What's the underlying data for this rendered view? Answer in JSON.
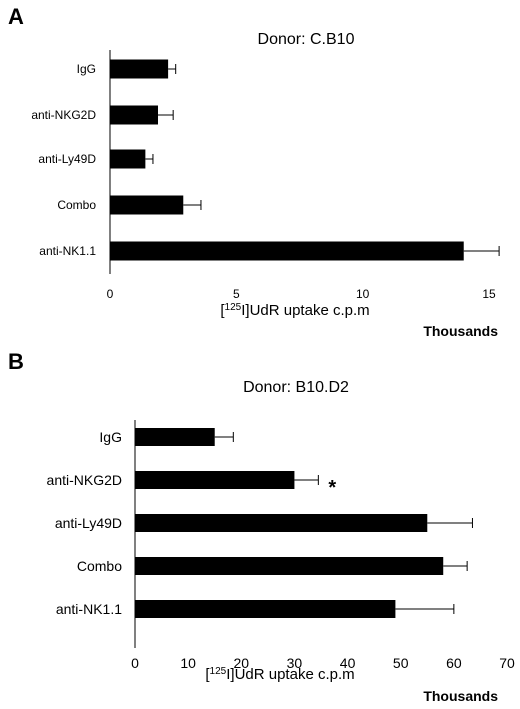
{
  "chart_data": [
    {
      "panel": "A",
      "type": "bar",
      "orientation": "horizontal",
      "title": "Donor: C.B10",
      "categories": [
        "IgG",
        "anti-NKG2D",
        "anti-Ly49D",
        "Combo",
        "anti-NK1.1"
      ],
      "values": [
        2.3,
        1.9,
        1.4,
        2.9,
        14.0
      ],
      "errors": [
        0.3,
        0.6,
        0.3,
        0.7,
        1.4
      ],
      "xlim": [
        0,
        15
      ],
      "xticks": [
        0,
        5,
        10,
        15
      ],
      "xlabel_pre": "[",
      "xlabel_sup": "125",
      "xlabel_post": "I]UdR uptake c.p.m",
      "units": "Thousands",
      "bar_color": "#000000",
      "grid": false
    },
    {
      "panel": "B",
      "type": "bar",
      "orientation": "horizontal",
      "title": "Donor:  B10.D2",
      "categories": [
        "IgG",
        "anti-NKG2D",
        "anti-Ly49D",
        "Combo",
        "anti-NK1.1"
      ],
      "values": [
        15,
        30,
        55,
        58,
        49
      ],
      "errors": [
        3.5,
        4.5,
        8.5,
        4.5,
        11
      ],
      "xlim": [
        0,
        70
      ],
      "xticks": [
        0,
        10,
        20,
        30,
        40,
        50,
        60,
        70
      ],
      "xlabel_pre": "[",
      "xlabel_sup": "125",
      "xlabel_post": "I]UdR uptake c.p.m",
      "units": "Thousands",
      "significance": [
        {
          "category": "anti-NKG2D",
          "mark": "*"
        }
      ],
      "bar_color": "#000000",
      "grid": false
    }
  ]
}
